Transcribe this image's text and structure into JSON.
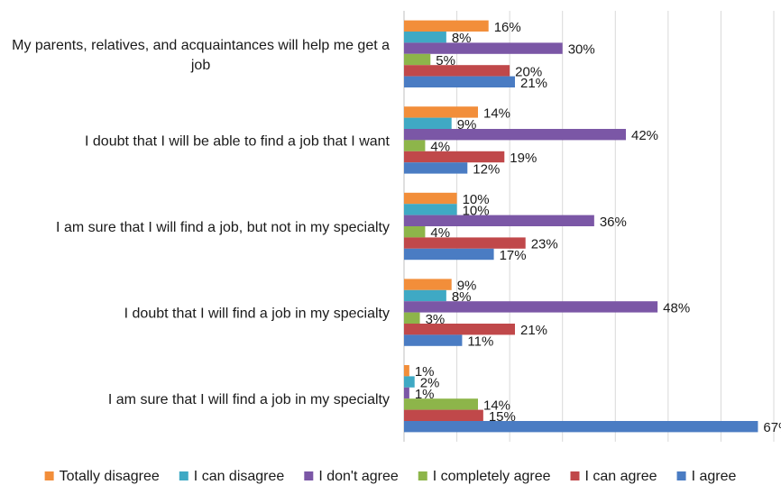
{
  "chart_data": {
    "type": "bar",
    "orientation": "horizontal",
    "categories": [
      "My parents, relatives, and acquaintances will help me get a job",
      "I doubt that I will be able to find a job that I want",
      "I am sure that I will find a job, but not in my specialty",
      "I doubt that I will find a job in my specialty",
      "I am sure that I will find a job in my specialty"
    ],
    "series": [
      {
        "name": "Totally disagree",
        "color": "#F28E3A",
        "values": [
          16,
          14,
          10,
          9,
          1
        ]
      },
      {
        "name": "I can disagree",
        "color": "#3FA9C4",
        "values": [
          8,
          9,
          10,
          8,
          2
        ]
      },
      {
        "name": "I don't agree",
        "color": "#7B57A6",
        "values": [
          30,
          42,
          36,
          48,
          1
        ]
      },
      {
        "name": "I completely agree",
        "color": "#8DB54A",
        "values": [
          5,
          4,
          4,
          3,
          14
        ]
      },
      {
        "name": "I can agree",
        "color": "#C0484A",
        "values": [
          20,
          19,
          23,
          21,
          15
        ]
      },
      {
        "name": "I agree",
        "color": "#4A7CC3",
        "values": [
          21,
          12,
          17,
          11,
          67
        ]
      }
    ],
    "value_suffix": "%",
    "xlim": [
      0,
      70
    ],
    "gridlines": [
      0,
      10,
      20,
      30,
      40,
      50,
      60,
      70
    ],
    "grid": true,
    "legend": "bottom",
    "data_labels": true,
    "title": "",
    "xlabel": "",
    "ylabel": ""
  }
}
